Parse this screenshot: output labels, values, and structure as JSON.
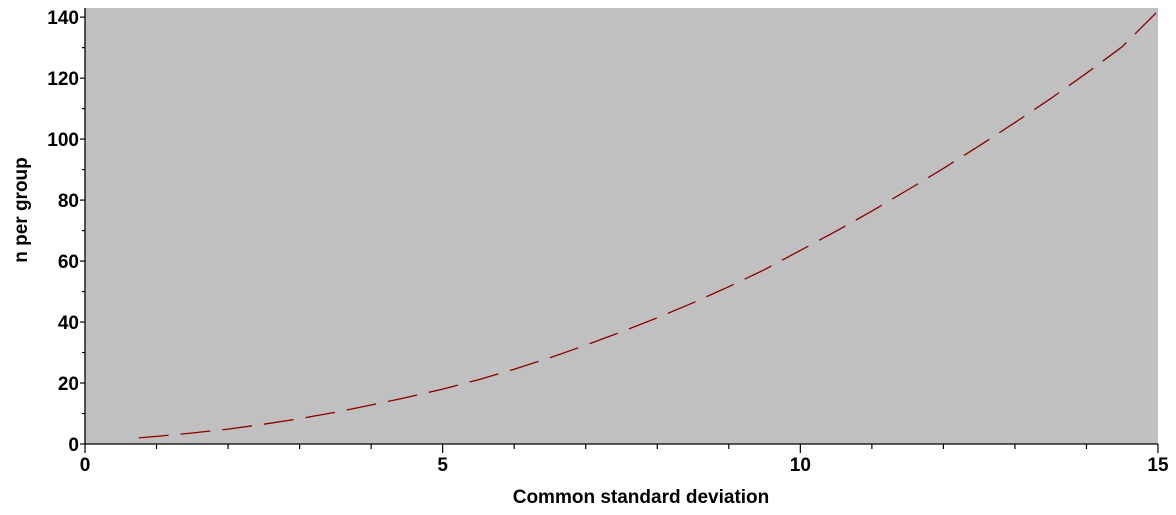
{
  "chart_data": {
    "type": "line",
    "title": "",
    "xlabel": "Common standard deviation",
    "ylabel": "n per group",
    "xlim": [
      0,
      15
    ],
    "ylim": [
      0,
      143
    ],
    "x_ticks": [
      0,
      5,
      10,
      15
    ],
    "y_ticks": [
      0,
      20,
      40,
      60,
      80,
      100,
      120,
      140
    ],
    "x_tick_labels": [
      "0",
      "5",
      "10",
      "15"
    ],
    "y_tick_labels": [
      "0",
      "20",
      "40",
      "60",
      "80",
      "100",
      "120",
      "140"
    ],
    "x_minor_step": 1,
    "y_minor_step": 10,
    "grid": false,
    "legend": "none",
    "colors": {
      "plot_background": "#c0c0c0",
      "line": "#8b0000",
      "axis": "#000000"
    },
    "line_style": "dashed",
    "series": [
      {
        "x": [
          0.75,
          1,
          1.5,
          2,
          2.5,
          3,
          3.5,
          4,
          4.5,
          5,
          5.5,
          6,
          6.5,
          7,
          7.5,
          8,
          8.5,
          9,
          9.5,
          10,
          10.5,
          11,
          11.5,
          12,
          12.5,
          13,
          13.5,
          14,
          14.5,
          15
        ],
        "y": [
          2,
          2.5,
          3.6,
          4.9,
          6.5,
          8.3,
          10.4,
          12.8,
          15.3,
          18,
          21.1,
          24.5,
          28.3,
          32.4,
          36.8,
          41.4,
          46.3,
          51.6,
          57.2,
          63.5,
          69.8,
          76.4,
          83.3,
          90.4,
          97.8,
          105.4,
          113.3,
          121.6,
          130.3,
          142
        ]
      }
    ]
  }
}
